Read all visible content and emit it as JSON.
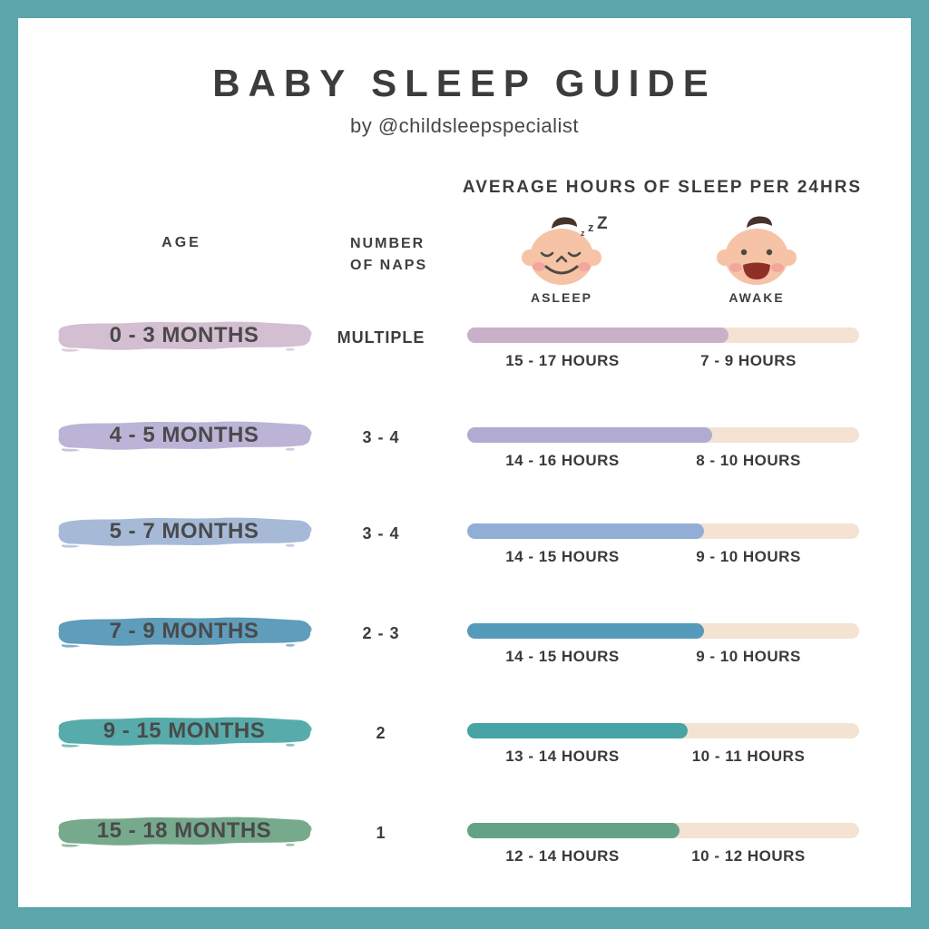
{
  "page": {
    "title": "BABY SLEEP GUIDE",
    "byline": "by @childsleepspecialist",
    "section_header": "AVERAGE HOURS OF SLEEP PER 24HRS",
    "col_age": "AGE",
    "col_naps_line1": "NUMBER",
    "col_naps_line2": "OF NAPS",
    "asleep_label": "ASLEEP",
    "awake_label": "AWAKE",
    "zzz": [
      "z",
      "z",
      "Z"
    ],
    "colors": {
      "frame": "#5aa6aa",
      "panel": "#ffffff",
      "text": "#3e3e3e",
      "baby_skin": "#f6c3a7",
      "baby_cheek": "#f2a19b",
      "baby_hair": "#46332b",
      "baby_mouth": "#8e3026",
      "baby_line": "#4b4b43"
    }
  },
  "chart_data": {
    "type": "bar",
    "subtype": "horizontal-stacked",
    "title": "AVERAGE HOURS OF SLEEP PER 24HRS",
    "units": "hours per 24 hours",
    "total_hours": 24,
    "legend": [
      "ASLEEP",
      "AWAKE"
    ],
    "awake_bar_color": "#f4e3d2",
    "rows": [
      {
        "age": "0 - 3 MONTHS",
        "naps": "MULTIPLE",
        "asleep_range": [
          15,
          17
        ],
        "awake_range": [
          7,
          9
        ],
        "asleep_label": "15 - 17 HOURS",
        "awake_label": "7 - 9 HOURS",
        "asleep_fraction": 0.667,
        "swatch_color": "#d3bfd1",
        "bar_color": "#c7b0c8"
      },
      {
        "age": "4 - 5 MONTHS",
        "naps": "3 - 4",
        "asleep_range": [
          14,
          16
        ],
        "awake_range": [
          8,
          10
        ],
        "asleep_label": "14 - 16 HOURS",
        "awake_label": "8 - 10 HOURS",
        "asleep_fraction": 0.625,
        "swatch_color": "#bcb4d6",
        "bar_color": "#b0abd1"
      },
      {
        "age": "5 - 7 MONTHS",
        "naps": "3 - 4",
        "asleep_range": [
          14,
          15
        ],
        "awake_range": [
          9,
          10
        ],
        "asleep_label": "14 - 15 HOURS",
        "awake_label": "9 - 10 HOURS",
        "asleep_fraction": 0.604,
        "swatch_color": "#a6bad8",
        "bar_color": "#93aed6"
      },
      {
        "age": "7 - 9 MONTHS",
        "naps": "2 - 3",
        "asleep_range": [
          14,
          15
        ],
        "awake_range": [
          9,
          10
        ],
        "asleep_label": "14 - 15 HOURS",
        "awake_label": "9 - 10 HOURS",
        "asleep_fraction": 0.604,
        "swatch_color": "#5f9dbb",
        "bar_color": "#569abb"
      },
      {
        "age": "9 - 15 MONTHS",
        "naps": "2",
        "asleep_range": [
          13,
          14
        ],
        "awake_range": [
          10,
          11
        ],
        "asleep_label": "13 - 14 HOURS",
        "awake_label": "10 - 11 HOURS",
        "asleep_fraction": 0.562,
        "swatch_color": "#57acab",
        "bar_color": "#46a4a4"
      },
      {
        "age": "15 - 18 MONTHS",
        "naps": "1",
        "asleep_range": [
          12,
          14
        ],
        "awake_range": [
          10,
          12
        ],
        "asleep_label": "12 - 14 HOURS",
        "awake_label": "10 - 12 HOURS",
        "asleep_fraction": 0.542,
        "swatch_color": "#77aa8d",
        "bar_color": "#64a287"
      }
    ]
  }
}
